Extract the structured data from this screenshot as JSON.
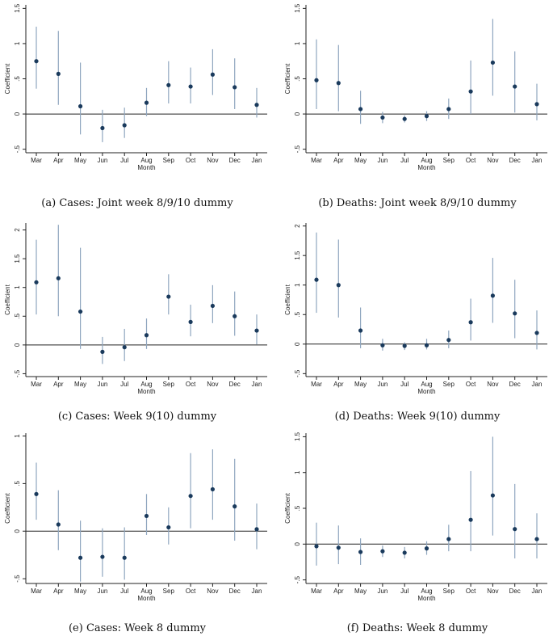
{
  "chart_data": [
    {
      "id": "a",
      "type": "scatter-errorbar",
      "caption": "(a) Cases: Joint week 8/9/10 dummy",
      "ylabel": "Coefficient",
      "xlabel": "Month",
      "categories": [
        "Mar",
        "Apr",
        "May",
        "Jun",
        "Jul",
        "Aug",
        "Sep",
        "Oct",
        "Nov",
        "Dec",
        "Jan"
      ],
      "yticks": [
        -0.5,
        0,
        0.5,
        1,
        1.5
      ],
      "ytick_labels": [
        "-.5",
        "0",
        ".5",
        "1",
        "1.5"
      ],
      "ylim": [
        -0.55,
        1.55
      ],
      "values": [
        0.75,
        0.57,
        0.11,
        -0.2,
        -0.16,
        0.16,
        0.41,
        0.39,
        0.56,
        0.38,
        0.13
      ],
      "lower": [
        0.36,
        0.13,
        -0.29,
        -0.4,
        -0.34,
        -0.03,
        0.15,
        0.15,
        0.27,
        0.07,
        -0.05
      ],
      "upper": [
        1.24,
        1.18,
        0.73,
        0.06,
        0.09,
        0.37,
        0.75,
        0.66,
        0.92,
        0.79,
        0.37
      ]
    },
    {
      "id": "b",
      "type": "scatter-errorbar",
      "caption": "(b) Deaths: Joint week 8/9/10 dummy",
      "ylabel": "Coefficient",
      "xlabel": "Month",
      "categories": [
        "Mar",
        "Apr",
        "May",
        "Jun",
        "Jul",
        "Aug",
        "Sep",
        "Oct",
        "Nov",
        "Dec",
        "Jan"
      ],
      "yticks": [
        -0.5,
        0,
        0.5,
        1,
        1.5
      ],
      "ytick_labels": [
        "-.5",
        "0",
        ".5",
        "1",
        "1.5"
      ],
      "ylim": [
        -0.55,
        1.55
      ],
      "values": [
        0.48,
        0.44,
        0.07,
        -0.05,
        -0.07,
        -0.03,
        0.07,
        0.32,
        0.73,
        0.39,
        0.14
      ],
      "lower": [
        0.07,
        0.04,
        -0.14,
        -0.13,
        -0.12,
        -0.1,
        -0.07,
        0.0,
        0.26,
        0.02,
        -0.09
      ],
      "upper": [
        1.06,
        0.98,
        0.33,
        0.03,
        -0.02,
        0.04,
        0.22,
        0.76,
        1.35,
        0.89,
        0.43
      ]
    },
    {
      "id": "c",
      "type": "scatter-errorbar",
      "caption": "(c) Cases: Week 9(10) dummy",
      "ylabel": "Coefficient",
      "xlabel": "Month",
      "categories": [
        "Mar",
        "Apr",
        "May",
        "Jun",
        "Jul",
        "Aug",
        "Sep",
        "Oct",
        "Nov",
        "Dec",
        "Jan"
      ],
      "yticks": [
        -0.5,
        0,
        0.5,
        1,
        1.5,
        2
      ],
      "ytick_labels": [
        "-.5",
        "0",
        ".5",
        "1",
        "1.5",
        "2"
      ],
      "ylim": [
        -0.55,
        2.12
      ],
      "values": [
        1.09,
        1.16,
        0.58,
        -0.12,
        -0.04,
        0.17,
        0.84,
        0.4,
        0.68,
        0.5,
        0.25
      ],
      "lower": [
        0.53,
        0.5,
        -0.07,
        -0.33,
        -0.28,
        -0.07,
        0.53,
        0.15,
        0.38,
        0.16,
        0.01
      ],
      "upper": [
        1.83,
        2.09,
        1.69,
        0.14,
        0.28,
        0.46,
        1.23,
        0.7,
        1.04,
        0.93,
        0.53
      ]
    },
    {
      "id": "d",
      "type": "scatter-errorbar",
      "caption": "(d) Deaths: Week 9(10) dummy",
      "ylabel": "Coefficient",
      "xlabel": "Month",
      "categories": [
        "Mar",
        "Apr",
        "May",
        "Jun",
        "Jul",
        "Aug",
        "Sep",
        "Oct",
        "Nov",
        "Dec",
        "Jan"
      ],
      "yticks": [
        -0.5,
        0,
        0.5,
        1,
        1.5,
        2
      ],
      "ytick_labels": [
        "-.5",
        "0",
        ".5",
        "1",
        "1.5",
        "2"
      ],
      "ylim": [
        -0.55,
        2.05
      ],
      "values": [
        1.09,
        1.0,
        0.23,
        -0.02,
        -0.03,
        -0.02,
        0.07,
        0.37,
        0.82,
        0.52,
        0.19
      ],
      "lower": [
        0.53,
        0.45,
        -0.07,
        -0.11,
        -0.1,
        -0.09,
        -0.07,
        0.06,
        0.36,
        0.1,
        -0.09
      ],
      "upper": [
        1.89,
        1.77,
        0.62,
        0.09,
        0.03,
        0.09,
        0.23,
        0.77,
        1.46,
        1.09,
        0.57
      ]
    },
    {
      "id": "e",
      "type": "scatter-errorbar",
      "caption": "(e) Cases: Week 8 dummy",
      "ylabel": "Coefficient",
      "xlabel": "Month",
      "categories": [
        "Mar",
        "Apr",
        "May",
        "Jun",
        "Jul",
        "Aug",
        "Sep",
        "Oct",
        "Nov",
        "Dec",
        "Jan"
      ],
      "yticks": [
        -0.5,
        0,
        0.5,
        1
      ],
      "ytick_labels": [
        "-.5",
        "0",
        ".5",
        "1"
      ],
      "ylim": [
        -0.55,
        1.03
      ],
      "values": [
        0.39,
        0.07,
        -0.28,
        -0.27,
        -0.28,
        0.16,
        0.04,
        0.37,
        0.44,
        0.26,
        0.02
      ],
      "lower": [
        0.12,
        -0.2,
        -0.53,
        -0.48,
        -0.51,
        -0.04,
        -0.14,
        0.03,
        0.12,
        -0.1,
        -0.19
      ],
      "upper": [
        0.72,
        0.43,
        0.11,
        0.03,
        0.04,
        0.39,
        0.25,
        0.82,
        0.86,
        0.76,
        0.29
      ]
    },
    {
      "id": "f",
      "type": "scatter-errorbar",
      "caption": "(f) Deaths: Week 8 dummy",
      "ylabel": "Coefficient",
      "xlabel": "Month",
      "categories": [
        "Mar",
        "Apr",
        "May",
        "Jun",
        "Jul",
        "Aug",
        "Sep",
        "Oct",
        "Nov",
        "Dec",
        "Jan"
      ],
      "yticks": [
        -0.5,
        0,
        0.5,
        1,
        1.5
      ],
      "ytick_labels": [
        "-.5",
        "0",
        ".5",
        "1",
        "1.5"
      ],
      "ylim": [
        -0.55,
        1.55
      ],
      "values": [
        -0.03,
        -0.05,
        -0.11,
        -0.1,
        -0.12,
        -0.06,
        0.07,
        0.34,
        0.68,
        0.21,
        0.07
      ],
      "lower": [
        -0.3,
        -0.28,
        -0.29,
        -0.18,
        -0.2,
        -0.15,
        -0.1,
        -0.1,
        0.12,
        -0.2,
        -0.2
      ],
      "upper": [
        0.3,
        0.26,
        0.08,
        -0.02,
        -0.04,
        0.04,
        0.27,
        1.02,
        1.5,
        0.84,
        0.43
      ]
    }
  ],
  "style": {
    "marker_color": "#1a3a5c",
    "ci_color": "#8fa6bf",
    "zero_line_color": "#222222"
  }
}
